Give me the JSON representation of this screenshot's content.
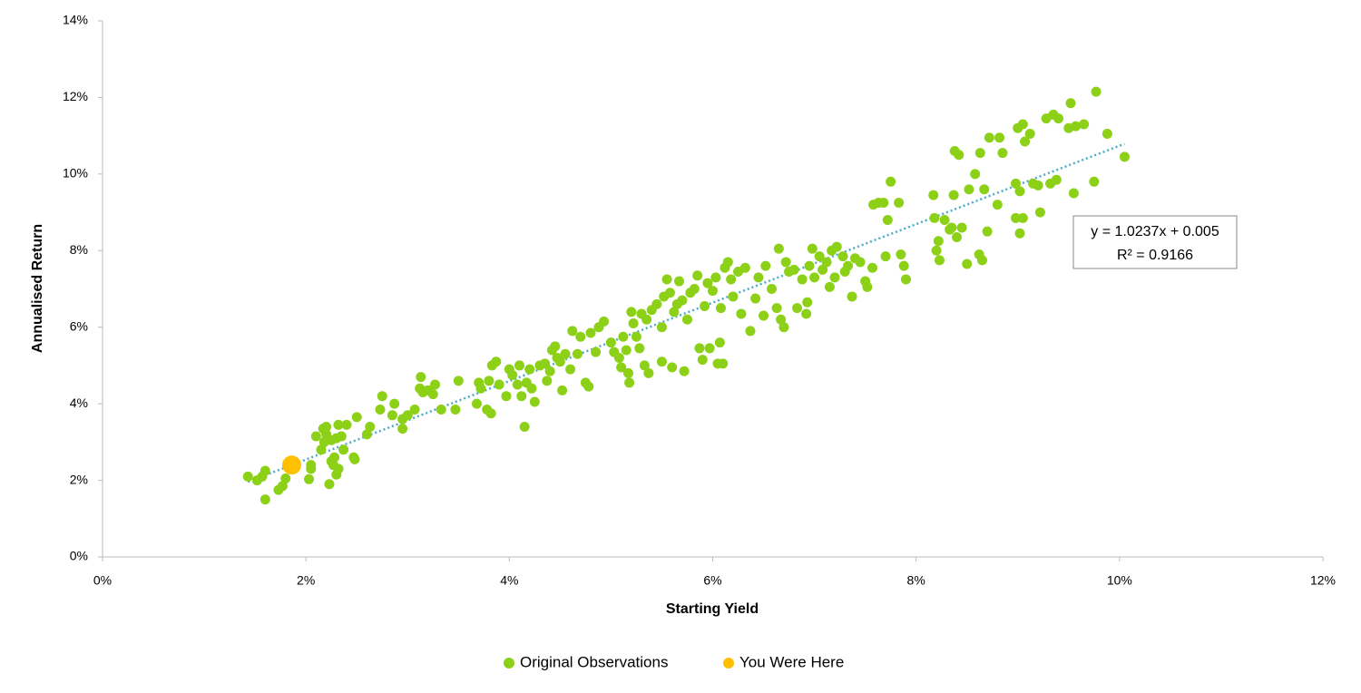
{
  "chart_data": {
    "type": "scatter",
    "x_label": "Starting Yield",
    "y_label": "Annualised Return",
    "xlim": [
      0,
      12
    ],
    "ylim": [
      0,
      14
    ],
    "xticks": [
      {
        "value": 0,
        "label": "0%"
      },
      {
        "value": 2,
        "label": "2%"
      },
      {
        "value": 4,
        "label": "4%"
      },
      {
        "value": 6,
        "label": "6%"
      },
      {
        "value": 8,
        "label": "8%"
      },
      {
        "value": 10,
        "label": "10%"
      },
      {
        "value": 12,
        "label": "12%"
      }
    ],
    "yticks": [
      {
        "value": 0,
        "label": "0%"
      },
      {
        "value": 2,
        "label": "2%"
      },
      {
        "value": 4,
        "label": "4%"
      },
      {
        "value": 6,
        "label": "6%"
      },
      {
        "value": 8,
        "label": "8%"
      },
      {
        "value": 10,
        "label": "10%"
      },
      {
        "value": 12,
        "label": "12%"
      },
      {
        "value": 14,
        "label": "14%"
      }
    ],
    "grid": false,
    "legend": "bottom",
    "series": [
      {
        "name": "Original Observations",
        "color": "#8cd017",
        "x": [
          1.43,
          1.52,
          1.57,
          1.6,
          1.6,
          1.73,
          1.77,
          1.8,
          2.03,
          2.05,
          2.05,
          2.1,
          2.15,
          2.17,
          2.18,
          2.2,
          2.2,
          2.23,
          2.25,
          2.25,
          2.27,
          2.28,
          2.3,
          2.3,
          2.32,
          2.32,
          2.35,
          2.37,
          2.4,
          2.47,
          2.48,
          2.5,
          2.6,
          2.63,
          2.73,
          2.75,
          2.85,
          2.87,
          2.95,
          2.95,
          3.0,
          3.07,
          3.12,
          3.13,
          3.15,
          3.2,
          3.25,
          3.27,
          3.33,
          3.47,
          3.5,
          3.68,
          3.7,
          3.72,
          3.78,
          3.8,
          3.82,
          3.83,
          3.87,
          3.9,
          3.97,
          4.0,
          4.03,
          4.08,
          4.1,
          4.12,
          4.15,
          4.17,
          4.2,
          4.22,
          4.25,
          4.3,
          4.35,
          4.37,
          4.4,
          4.42,
          4.45,
          4.47,
          4.5,
          4.52,
          4.55,
          4.6,
          4.62,
          4.67,
          4.7,
          4.75,
          4.78,
          4.8,
          4.85,
          4.88,
          4.93,
          5.0,
          5.03,
          5.08,
          5.1,
          5.12,
          5.15,
          5.17,
          5.18,
          5.2,
          5.22,
          5.25,
          5.28,
          5.3,
          5.33,
          5.35,
          5.37,
          5.4,
          5.45,
          5.5,
          5.5,
          5.52,
          5.55,
          5.58,
          5.6,
          5.62,
          5.65,
          5.67,
          5.7,
          5.72,
          5.75,
          5.78,
          5.82,
          5.85,
          5.87,
          5.9,
          5.92,
          5.95,
          5.97,
          6.0,
          6.03,
          6.05,
          6.07,
          6.08,
          6.1,
          6.12,
          6.15,
          6.18,
          6.2,
          6.25,
          6.28,
          6.32,
          6.37,
          6.42,
          6.45,
          6.5,
          6.52,
          6.58,
          6.63,
          6.65,
          6.67,
          6.7,
          6.72,
          6.75,
          6.8,
          6.83,
          6.88,
          6.92,
          6.93,
          6.95,
          6.98,
          7.0,
          7.05,
          7.08,
          7.12,
          7.15,
          7.17,
          7.2,
          7.22,
          7.28,
          7.3,
          7.33,
          7.37,
          7.4,
          7.45,
          7.5,
          7.52,
          7.57,
          7.58,
          7.63,
          7.68,
          7.7,
          7.72,
          7.75,
          7.83,
          7.85,
          7.88,
          7.9,
          8.17,
          8.18,
          8.2,
          8.22,
          8.23,
          8.28,
          8.33,
          8.35,
          8.37,
          8.38,
          8.4,
          8.42,
          8.45,
          8.5,
          8.52,
          8.58,
          8.62,
          8.63,
          8.65,
          8.67,
          8.7,
          8.72,
          8.8,
          8.82,
          8.85,
          8.98,
          8.98,
          9.0,
          9.02,
          9.02,
          9.05,
          9.05,
          9.07,
          9.12,
          9.15,
          9.2,
          9.22,
          9.28,
          9.32,
          9.35,
          9.38,
          9.4,
          9.5,
          9.52,
          9.55,
          9.57,
          9.65,
          9.75,
          9.77,
          9.88,
          10.05
        ],
        "values": [
          2.1,
          2.0,
          2.1,
          2.25,
          1.5,
          1.75,
          1.85,
          2.05,
          2.03,
          2.3,
          2.4,
          3.15,
          2.8,
          3.35,
          3.0,
          3.4,
          3.2,
          1.9,
          2.5,
          3.05,
          2.4,
          2.6,
          3.1,
          2.15,
          2.3,
          3.45,
          3.15,
          2.8,
          3.45,
          2.6,
          2.55,
          3.65,
          3.2,
          3.4,
          3.85,
          4.2,
          3.7,
          4.0,
          3.35,
          3.6,
          3.7,
          3.85,
          4.4,
          4.7,
          4.3,
          4.35,
          4.25,
          4.5,
          3.85,
          3.85,
          4.6,
          4.0,
          4.55,
          4.4,
          3.85,
          4.6,
          3.75,
          5.0,
          5.1,
          4.5,
          4.2,
          4.9,
          4.75,
          4.5,
          5.0,
          4.2,
          3.4,
          4.55,
          4.9,
          4.4,
          4.05,
          5.0,
          5.05,
          4.6,
          4.85,
          5.4,
          5.5,
          5.2,
          5.1,
          4.35,
          5.3,
          4.9,
          5.9,
          5.3,
          5.75,
          4.55,
          4.45,
          5.85,
          5.35,
          6.0,
          6.15,
          5.6,
          5.35,
          5.2,
          4.95,
          5.75,
          5.4,
          4.8,
          4.55,
          6.4,
          6.1,
          5.75,
          5.45,
          6.35,
          5.0,
          6.2,
          4.8,
          6.45,
          6.6,
          5.1,
          6.0,
          6.8,
          7.25,
          6.9,
          4.95,
          6.4,
          6.6,
          7.2,
          6.7,
          4.85,
          6.2,
          6.9,
          7.0,
          7.35,
          5.45,
          5.15,
          6.55,
          7.15,
          5.45,
          6.95,
          7.3,
          5.05,
          5.6,
          6.5,
          5.05,
          7.55,
          7.7,
          7.25,
          6.8,
          7.45,
          6.35,
          7.55,
          5.9,
          6.75,
          7.3,
          6.3,
          7.6,
          7.0,
          6.5,
          8.05,
          6.2,
          6.0,
          7.7,
          7.45,
          7.5,
          6.5,
          7.25,
          6.35,
          6.65,
          7.6,
          8.05,
          7.3,
          7.85,
          7.5,
          7.7,
          7.05,
          8.0,
          7.3,
          8.1,
          7.85,
          7.45,
          7.6,
          6.8,
          7.8,
          7.7,
          7.2,
          7.05,
          7.55,
          9.2,
          9.25,
          9.25,
          7.85,
          8.8,
          9.8,
          9.25,
          7.9,
          7.6,
          7.25,
          9.45,
          8.85,
          8.0,
          8.25,
          7.75,
          8.8,
          8.55,
          8.6,
          9.45,
          10.6,
          8.35,
          10.5,
          8.6,
          7.65,
          9.6,
          10.0,
          7.9,
          10.55,
          7.75,
          9.6,
          8.5,
          10.95,
          9.2,
          10.95,
          10.55,
          9.75,
          8.85,
          11.2,
          8.45,
          9.55,
          11.3,
          8.85,
          10.85,
          11.05,
          9.75,
          9.7,
          9.0,
          11.45,
          9.75,
          11.55,
          9.85,
          11.45,
          11.2,
          11.85,
          9.5,
          11.25,
          11.3,
          9.8,
          12.15,
          11.05,
          10.45
        ]
      },
      {
        "name": "You Were Here",
        "color": "#ffc000",
        "x": [
          1.86
        ],
        "values": [
          2.4
        ]
      }
    ],
    "trendline": {
      "color": "#4bacc6",
      "x": [
        1.43,
        10.05
      ],
      "values": [
        1.96,
        10.79
      ]
    },
    "annotation": [
      "y = 1.0237x + 0.005",
      "R² = 0.9166"
    ]
  }
}
